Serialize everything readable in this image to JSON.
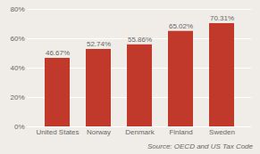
{
  "chart_data": {
    "type": "bar",
    "categories": [
      "United States",
      "Norway",
      "Denmark",
      "Finland",
      "Sweden"
    ],
    "values": [
      46.67,
      52.74,
      55.86,
      65.02,
      70.31
    ],
    "value_labels": [
      "46.67%",
      "52.74%",
      "55.86%",
      "65.02%",
      "70.31%"
    ],
    "data_labels": true,
    "color": "#c0392b",
    "ylim": [
      0,
      80
    ],
    "yticks": [
      {
        "value": 0,
        "label": "0%"
      },
      {
        "value": 20,
        "label": "20%"
      },
      {
        "value": 40,
        "label": "40%"
      },
      {
        "value": 60,
        "label": "60%"
      },
      {
        "value": 80,
        "label": "80%"
      }
    ],
    "grid": true,
    "annotations": [
      "Source: OECD and US Tax Code"
    ]
  }
}
